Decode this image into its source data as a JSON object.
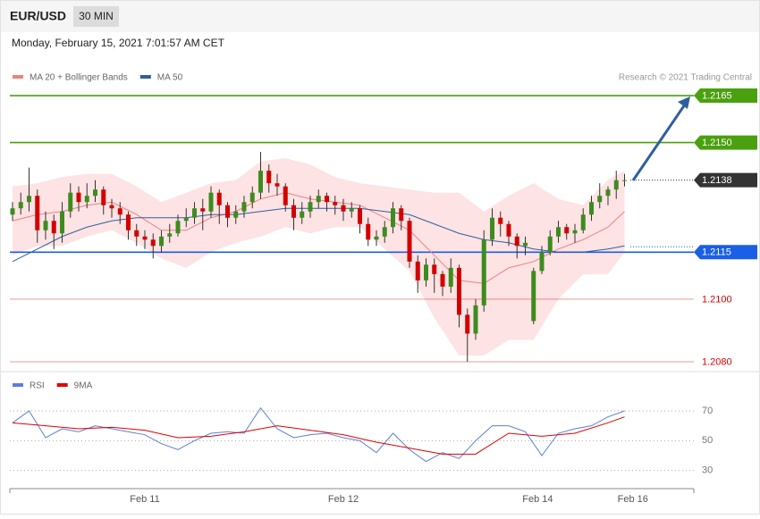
{
  "header": {
    "symbol": "EUR/USD",
    "interval": "30 MIN",
    "timestamp": "Monday, February 15, 2021 7:01:57 AM CET"
  },
  "chart_data": [
    {
      "type": "candlestick",
      "credit": "Research © 2021 Trading Central",
      "xlim": [
        -0.65,
        164.76
      ],
      "ylim": [
        1.2078,
        1.217
      ],
      "up_color": "#3d8c1e",
      "down_color": "#d40000",
      "x": [
        0,
        2,
        4,
        6,
        8,
        10,
        12,
        14,
        16,
        18,
        20,
        22,
        24,
        26,
        28,
        30,
        32,
        34,
        36,
        38,
        40,
        42,
        44,
        46,
        48,
        50,
        52,
        54,
        56,
        58,
        60,
        62,
        64,
        66,
        68,
        70,
        72,
        74,
        76,
        78,
        80,
        82,
        84,
        86,
        88,
        90,
        92,
        94,
        96,
        98,
        100,
        102,
        104,
        106,
        108,
        110,
        112,
        114,
        116,
        118,
        120,
        122,
        124,
        126,
        128,
        130,
        132,
        134,
        136,
        138,
        140,
        142,
        144,
        146,
        148
      ],
      "open": [
        1.2127,
        1.2129,
        1.2131,
        1.2133,
        1.2122,
        1.2125,
        1.2121,
        1.2128,
        1.2134,
        1.2131,
        1.2133,
        1.2135,
        1.213,
        1.2129,
        1.2127,
        1.2122,
        1.212,
        1.2119,
        1.2117,
        1.212,
        1.2121,
        1.2125,
        1.2126,
        1.2129,
        1.2128,
        1.2134,
        1.213,
        1.2126,
        1.2128,
        1.2131,
        1.2134,
        1.2141,
        1.2137,
        1.2136,
        1.213,
        1.2126,
        1.2128,
        1.2131,
        1.2133,
        1.2131,
        1.213,
        1.2128,
        1.2129,
        1.2124,
        1.2119,
        1.212,
        1.2123,
        1.2129,
        1.2125,
        1.2112,
        1.2106,
        1.2111,
        1.2108,
        1.2104,
        1.211,
        1.2095,
        1.2089,
        1.2098,
        1.2119,
        1.2126,
        1.2124,
        1.212,
        1.2117,
        1.2093,
        1.2109,
        1.2115,
        1.212,
        1.2123,
        1.2121,
        1.2122,
        1.2127,
        1.2131,
        1.2133,
        1.2135,
        1.2138
      ],
      "high": [
        1.2131,
        1.2134,
        1.2142,
        1.2135,
        1.2128,
        1.2127,
        1.2131,
        1.2137,
        1.2136,
        1.2137,
        1.2138,
        1.2136,
        1.2132,
        1.2131,
        1.2128,
        1.2124,
        1.2122,
        1.2121,
        1.2122,
        1.2124,
        1.2127,
        1.2129,
        1.2131,
        1.2132,
        1.2136,
        1.2135,
        1.2131,
        1.213,
        1.2133,
        1.2136,
        1.2147,
        1.2143,
        1.214,
        1.2137,
        1.2132,
        1.2131,
        1.2133,
        1.2135,
        1.2134,
        1.2133,
        1.2132,
        1.2131,
        1.213,
        1.2126,
        1.2122,
        1.2125,
        1.2131,
        1.213,
        1.2126,
        1.2114,
        1.2113,
        1.2113,
        1.2109,
        1.2113,
        1.2111,
        1.2097,
        1.21,
        1.2122,
        1.2129,
        1.2128,
        1.2125,
        1.2121,
        1.212,
        1.211,
        1.2117,
        1.2122,
        1.2125,
        1.2124,
        1.2124,
        1.2129,
        1.2133,
        1.2137,
        1.2136,
        1.2141,
        1.214
      ],
      "low": [
        1.2125,
        1.2127,
        1.2128,
        1.2118,
        1.2119,
        1.2116,
        1.2118,
        1.2126,
        1.2128,
        1.2129,
        1.2131,
        1.2127,
        1.2126,
        1.2124,
        1.2119,
        1.2117,
        1.2116,
        1.2113,
        1.2115,
        1.2118,
        1.212,
        1.2123,
        1.2124,
        1.2122,
        1.2126,
        1.2124,
        1.2123,
        1.2124,
        1.2126,
        1.2129,
        1.2132,
        1.2134,
        1.2133,
        1.2128,
        1.2122,
        1.2124,
        1.2126,
        1.2129,
        1.2128,
        1.2127,
        1.2125,
        1.2126,
        1.2121,
        1.2117,
        1.2117,
        1.2118,
        1.2121,
        1.2122,
        1.211,
        1.2102,
        1.2104,
        1.2102,
        1.2101,
        1.2102,
        1.2091,
        1.208,
        1.2087,
        1.2096,
        1.2117,
        1.212,
        1.2117,
        1.2113,
        1.2114,
        1.2092,
        1.2108,
        1.2114,
        1.2118,
        1.2119,
        1.2118,
        1.2121,
        1.2125,
        1.2129,
        1.213,
        1.2132,
        1.2136
      ],
      "close": [
        1.2129,
        1.2131,
        1.2133,
        1.2122,
        1.2125,
        1.2121,
        1.2128,
        1.2134,
        1.2131,
        1.2133,
        1.2135,
        1.213,
        1.2129,
        1.2127,
        1.2122,
        1.212,
        1.2119,
        1.2117,
        1.212,
        1.2121,
        1.2125,
        1.2126,
        1.2129,
        1.2128,
        1.2134,
        1.213,
        1.2126,
        1.2128,
        1.2131,
        1.2134,
        1.2141,
        1.2137,
        1.2136,
        1.213,
        1.2126,
        1.2128,
        1.2131,
        1.2133,
        1.2131,
        1.213,
        1.2128,
        1.2129,
        1.2124,
        1.2119,
        1.212,
        1.2123,
        1.2129,
        1.2125,
        1.2112,
        1.2106,
        1.2111,
        1.2108,
        1.2104,
        1.211,
        1.2095,
        1.2089,
        1.2098,
        1.2119,
        1.2126,
        1.2124,
        1.212,
        1.2117,
        1.2118,
        1.2109,
        1.2115,
        1.212,
        1.2123,
        1.2121,
        1.2122,
        1.2127,
        1.2131,
        1.2133,
        1.2135,
        1.2138,
        1.2138
      ],
      "overlays": [
        {
          "name": "MA 20 + Bollinger Bands",
          "color": "#f08080",
          "band_color": "#fde3e3",
          "x": [
            0,
            6,
            12,
            18,
            24,
            30,
            36,
            42,
            48,
            54,
            60,
            66,
            72,
            78,
            84,
            90,
            96,
            102,
            108,
            114,
            120,
            126,
            132,
            138,
            144,
            148
          ],
          "values": [
            1.2125,
            1.2127,
            1.2128,
            1.213,
            1.2131,
            1.2127,
            1.2122,
            1.2122,
            1.2126,
            1.2128,
            1.2132,
            1.2134,
            1.2132,
            1.2131,
            1.213,
            1.2126,
            1.2122,
            1.2114,
            1.2106,
            1.2105,
            1.211,
            1.2112,
            1.2116,
            1.2119,
            1.2123,
            1.2128
          ],
          "upper": [
            1.2136,
            1.2137,
            1.2139,
            1.214,
            1.214,
            1.2136,
            1.2131,
            1.2134,
            1.2137,
            1.2138,
            1.2144,
            1.2145,
            1.2143,
            1.2139,
            1.2137,
            1.2136,
            1.2135,
            1.2134,
            1.2134,
            1.2128,
            1.2133,
            1.2137,
            1.2132,
            1.213,
            1.2138,
            1.2141
          ],
          "lower": [
            1.2114,
            1.2117,
            1.2117,
            1.212,
            1.2122,
            1.2118,
            1.2113,
            1.211,
            1.2115,
            1.2118,
            1.212,
            1.2123,
            1.2121,
            1.2123,
            1.2123,
            1.2116,
            1.2109,
            1.2094,
            1.2082,
            1.2082,
            1.2087,
            1.2087,
            1.21,
            1.2108,
            1.2108,
            1.2115
          ]
        },
        {
          "name": "MA 50",
          "color": "#2f5f9f",
          "x": [
            0,
            6,
            12,
            18,
            24,
            30,
            36,
            42,
            48,
            54,
            60,
            66,
            72,
            78,
            84,
            90,
            96,
            102,
            108,
            114,
            120,
            126,
            132,
            138,
            144,
            148
          ],
          "values": [
            1.2112,
            1.2116,
            1.212,
            1.2123,
            1.2125,
            1.2126,
            1.2126,
            1.2126,
            1.2127,
            1.2127,
            1.2128,
            1.2129,
            1.2129,
            1.2129,
            1.2129,
            1.2128,
            1.2127,
            1.2124,
            1.2121,
            1.2119,
            1.2118,
            1.2116,
            1.2115,
            1.2115,
            1.2116,
            1.2117
          ]
        }
      ],
      "levels": [
        {
          "value": 1.2165,
          "color": "#4aa00e",
          "style": "box",
          "line": "solid"
        },
        {
          "value": 1.215,
          "label": "1.2150",
          "color": "#4aa00e",
          "style": "box",
          "line": "solid"
        },
        {
          "value": 1.2138,
          "color": "#333333",
          "style": "box",
          "line": "dotted"
        },
        {
          "value": 1.2115,
          "color": "#1a5fe6",
          "style": "box",
          "line": "solid"
        },
        {
          "value": 1.21,
          "label": "1.2100",
          "color": "#e00000",
          "style": "text",
          "line": "solid"
        },
        {
          "value": 1.208,
          "label": "1.2080",
          "color": "#e00000",
          "style": "text",
          "line": "solid"
        }
      ]
    },
    {
      "type": "line",
      "xlim": [
        -0.65,
        164.76
      ],
      "ylim": [
        22,
        79
      ],
      "yticks": [
        30,
        50,
        70
      ],
      "xticks": [
        {
          "value": 32,
          "label": "Feb 11"
        },
        {
          "value": 80,
          "label": "Feb 12"
        },
        {
          "value": 127,
          "label": "Feb 14"
        },
        {
          "value": 150,
          "label": "Feb 16"
        }
      ],
      "series": [
        {
          "name": "RSI",
          "color": "#5b7fd8",
          "x": [
            0,
            4,
            8,
            12,
            16,
            20,
            24,
            28,
            32,
            36,
            40,
            44,
            48,
            52,
            56,
            60,
            64,
            68,
            72,
            76,
            80,
            84,
            88,
            92,
            96,
            100,
            104,
            108,
            112,
            116,
            120,
            124,
            128,
            132,
            136,
            140,
            144,
            148
          ],
          "values": [
            62,
            70,
            52,
            58,
            56,
            60,
            58,
            56,
            54,
            48,
            44,
            50,
            55,
            56,
            55,
            72,
            58,
            52,
            54,
            55,
            52,
            50,
            42,
            55,
            44,
            36,
            42,
            38,
            50,
            60,
            60,
            56,
            40,
            55,
            58,
            60,
            66,
            70
          ]
        },
        {
          "name": "9MA",
          "color": "#e00000",
          "x": [
            0,
            8,
            16,
            24,
            32,
            40,
            48,
            56,
            64,
            72,
            80,
            88,
            96,
            104,
            112,
            120,
            128,
            136,
            144,
            148
          ],
          "values": [
            62,
            60,
            58,
            59,
            57,
            52,
            53,
            56,
            60,
            57,
            54,
            49,
            45,
            41,
            41,
            55,
            53,
            55,
            62,
            66
          ]
        }
      ]
    }
  ]
}
